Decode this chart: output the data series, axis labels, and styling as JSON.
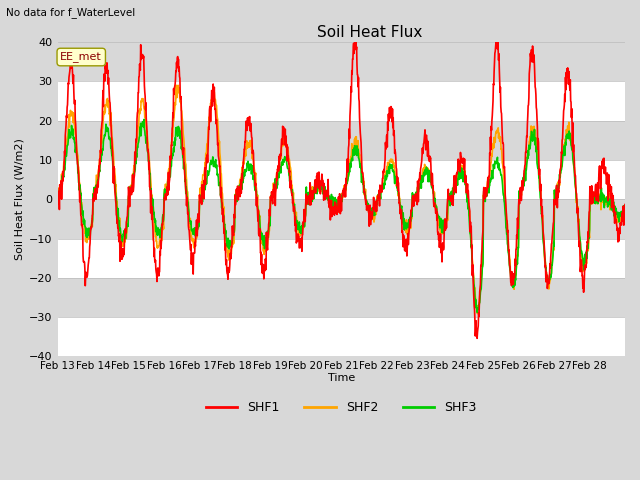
{
  "title": "Soil Heat Flux",
  "subtitle": "No data for f_WaterLevel",
  "ylabel": "Soil Heat Flux (W/m2)",
  "xlabel": "Time",
  "annotation": "EE_met",
  "ylim": [
    -40,
    40
  ],
  "yticks": [
    -40,
    -30,
    -20,
    -10,
    0,
    10,
    20,
    30,
    40
  ],
  "xtick_labels": [
    "Feb 13",
    "Feb 14",
    "Feb 15",
    "Feb 16",
    "Feb 17",
    "Feb 18",
    "Feb 19",
    "Feb 20",
    "Feb 21",
    "Feb 22",
    "Feb 23",
    "Feb 24",
    "Feb 25",
    "Feb 26",
    "Feb 27",
    "Feb 28"
  ],
  "colors": {
    "SHF1": "#ff0000",
    "SHF2": "#ffa500",
    "SHF3": "#00cc00"
  },
  "bg_color": "#d8d8d8",
  "plot_bg": "#e8e8e8",
  "band_light": "#ebebeb",
  "band_dark": "#d8d8d8",
  "grid_color": "#ffffff",
  "linewidth": 1.2,
  "n_days": 16,
  "pts_per_day": 96
}
